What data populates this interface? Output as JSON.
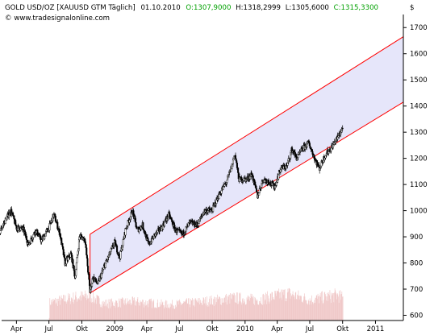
{
  "header": {
    "symbol": "GOLD USD/OZ [XAUUSD GTM  Täglich]",
    "date": "01.10.2010",
    "open_label": "O:",
    "open": "1307,9000",
    "high_label": "H:",
    "high": "1318,2999",
    "low_label": "L:",
    "low": "1305,6000",
    "close_label": "C:",
    "close": "1315,3300",
    "site": "© www.tradesignalonline.com",
    "currency": "$"
  },
  "colors": {
    "channel_fill": "#e6e6fa",
    "channel_line": "#ff0000",
    "candle_up": "#ffffff",
    "candle_down": "#000000",
    "volume": "#f0c8c8",
    "open_text": "#00a000"
  },
  "chart_data": {
    "type": "line",
    "series_style": "candlestick",
    "ylim": [
      580,
      1750
    ],
    "y_ticks": [
      600,
      700,
      800,
      900,
      1000,
      1100,
      1200,
      1300,
      1400,
      1500,
      1600,
      1700
    ],
    "x_start": "2008-02-15",
    "x_end": "2011-03-20",
    "x_ticks": [
      {
        "label": "Apr",
        "date": "2008-04-01"
      },
      {
        "label": "Jul",
        "date": "2008-07-01"
      },
      {
        "label": "Okt",
        "date": "2008-10-01"
      },
      {
        "label": "2009",
        "date": "2009-01-01"
      },
      {
        "label": "Apr",
        "date": "2009-04-01"
      },
      {
        "label": "Jul",
        "date": "2009-07-01"
      },
      {
        "label": "Okt",
        "date": "2009-10-01"
      },
      {
        "label": "2010",
        "date": "2010-01-01"
      },
      {
        "label": "Apr",
        "date": "2010-04-01"
      },
      {
        "label": "Jul",
        "date": "2010-07-01"
      },
      {
        "label": "Okt",
        "date": "2010-10-01"
      },
      {
        "label": "2011",
        "date": "2011-01-01"
      }
    ],
    "price_path": [
      [
        "2008-02-15",
        920
      ],
      [
        "2008-03-05",
        975
      ],
      [
        "2008-03-17",
        1000
      ],
      [
        "2008-04-01",
        935
      ],
      [
        "2008-04-20",
        930
      ],
      [
        "2008-05-05",
        870
      ],
      [
        "2008-05-25",
        925
      ],
      [
        "2008-06-10",
        885
      ],
      [
        "2008-07-01",
        935
      ],
      [
        "2008-07-15",
        985
      ],
      [
        "2008-08-01",
        910
      ],
      [
        "2008-08-15",
        800
      ],
      [
        "2008-09-01",
        835
      ],
      [
        "2008-09-12",
        745
      ],
      [
        "2008-09-25",
        905
      ],
      [
        "2008-10-10",
        890
      ],
      [
        "2008-10-24",
        690
      ],
      [
        "2008-11-01",
        745
      ],
      [
        "2008-11-15",
        720
      ],
      [
        "2008-12-01",
        780
      ],
      [
        "2008-12-20",
        840
      ],
      [
        "2009-01-01",
        880
      ],
      [
        "2009-01-15",
        820
      ],
      [
        "2009-02-01",
        930
      ],
      [
        "2009-02-20",
        1000
      ],
      [
        "2009-03-05",
        925
      ],
      [
        "2009-03-20",
        945
      ],
      [
        "2009-04-06",
        870
      ],
      [
        "2009-04-25",
        910
      ],
      [
        "2009-05-15",
        940
      ],
      [
        "2009-06-02",
        985
      ],
      [
        "2009-06-20",
        925
      ],
      [
        "2009-07-10",
        910
      ],
      [
        "2009-07-31",
        955
      ],
      [
        "2009-08-20",
        945
      ],
      [
        "2009-09-10",
        1000
      ],
      [
        "2009-09-30",
        1000
      ],
      [
        "2009-10-20",
        1060
      ],
      [
        "2009-11-10",
        1110
      ],
      [
        "2009-11-25",
        1170
      ],
      [
        "2009-12-03",
        1220
      ],
      [
        "2009-12-15",
        1120
      ],
      [
        "2010-01-05",
        1120
      ],
      [
        "2010-01-20",
        1140
      ],
      [
        "2010-02-05",
        1055
      ],
      [
        "2010-02-20",
        1120
      ],
      [
        "2010-03-10",
        1110
      ],
      [
        "2010-03-25",
        1090
      ],
      [
        "2010-04-10",
        1160
      ],
      [
        "2010-04-28",
        1170
      ],
      [
        "2010-05-12",
        1235
      ],
      [
        "2010-05-26",
        1200
      ],
      [
        "2010-06-10",
        1235
      ],
      [
        "2010-06-28",
        1260
      ],
      [
        "2010-07-15",
        1200
      ],
      [
        "2010-07-28",
        1160
      ],
      [
        "2010-08-12",
        1210
      ],
      [
        "2010-08-30",
        1240
      ],
      [
        "2010-09-15",
        1275
      ],
      [
        "2010-10-01",
        1315
      ]
    ],
    "channel": {
      "lower": [
        [
          "2008-10-24",
          685
        ],
        [
          "2011-03-20",
          1415
        ]
      ],
      "upper": [
        [
          "2008-10-24",
          910
        ],
        [
          "2011-03-20",
          1665
        ]
      ]
    },
    "volume_profile": [
      [
        "2008-02-15",
        0
      ],
      [
        "2008-07-01",
        0
      ],
      [
        "2008-07-02",
        0.48
      ],
      [
        "2008-09-15",
        0.62
      ],
      [
        "2008-10-24",
        0.65
      ],
      [
        "2008-12-01",
        0.45
      ],
      [
        "2009-03-01",
        0.5
      ],
      [
        "2009-06-01",
        0.42
      ],
      [
        "2009-09-01",
        0.5
      ],
      [
        "2009-12-01",
        0.6
      ],
      [
        "2010-02-01",
        0.55
      ],
      [
        "2010-05-01",
        0.72
      ],
      [
        "2010-07-01",
        0.55
      ],
      [
        "2010-09-15",
        0.68
      ],
      [
        "2010-10-01",
        0.6
      ]
    ]
  }
}
